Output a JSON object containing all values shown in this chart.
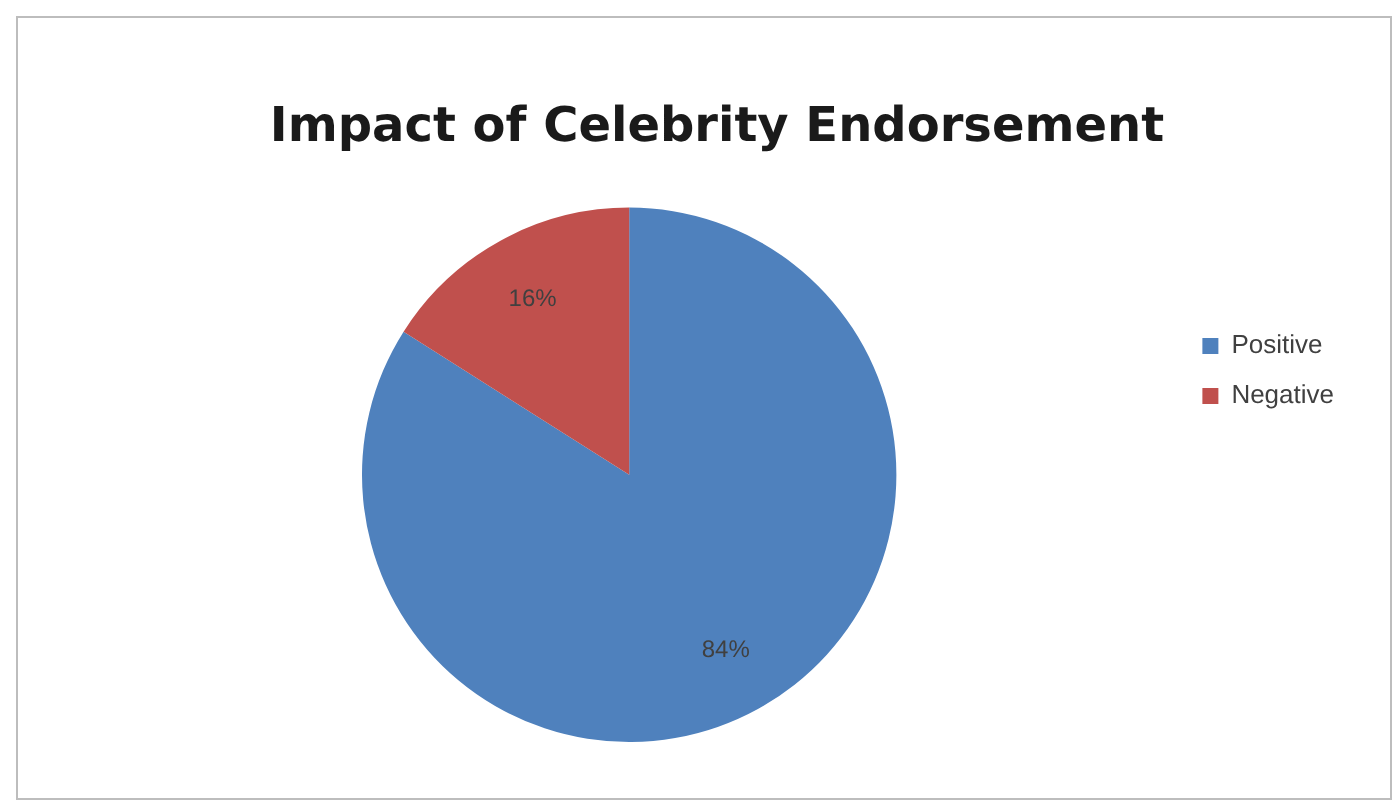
{
  "chart_data": {
    "type": "pie",
    "title": "Impact of Celebrity Endorsement",
    "categories": [
      "Positive",
      "Negative"
    ],
    "values": [
      84,
      16
    ],
    "colors": [
      "#4f81bd",
      "#c0504d"
    ],
    "value_labels": [
      "84%",
      "16%"
    ],
    "legend": "right"
  }
}
